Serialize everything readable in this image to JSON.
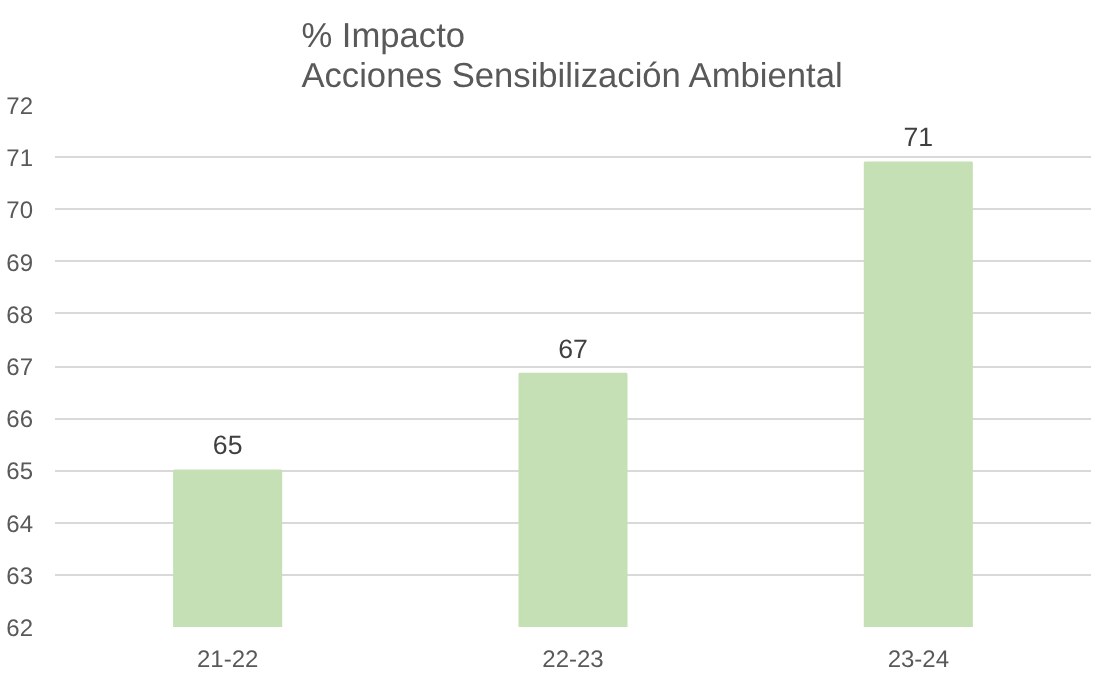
{
  "chart_data": {
    "type": "bar",
    "title": "% Impacto\nAcciones Sensibilización Ambiental",
    "categories": [
      "21-22",
      "22-23",
      "23-24"
    ],
    "values": [
      65,
      66.85,
      70.9
    ],
    "value_labels": [
      "65",
      "67",
      "71"
    ],
    "color": "#c5e0b4",
    "ylim": [
      62,
      72
    ],
    "yticks": [
      62,
      63,
      64,
      65,
      66,
      67,
      68,
      69,
      70,
      71,
      72
    ],
    "grid": "y"
  }
}
